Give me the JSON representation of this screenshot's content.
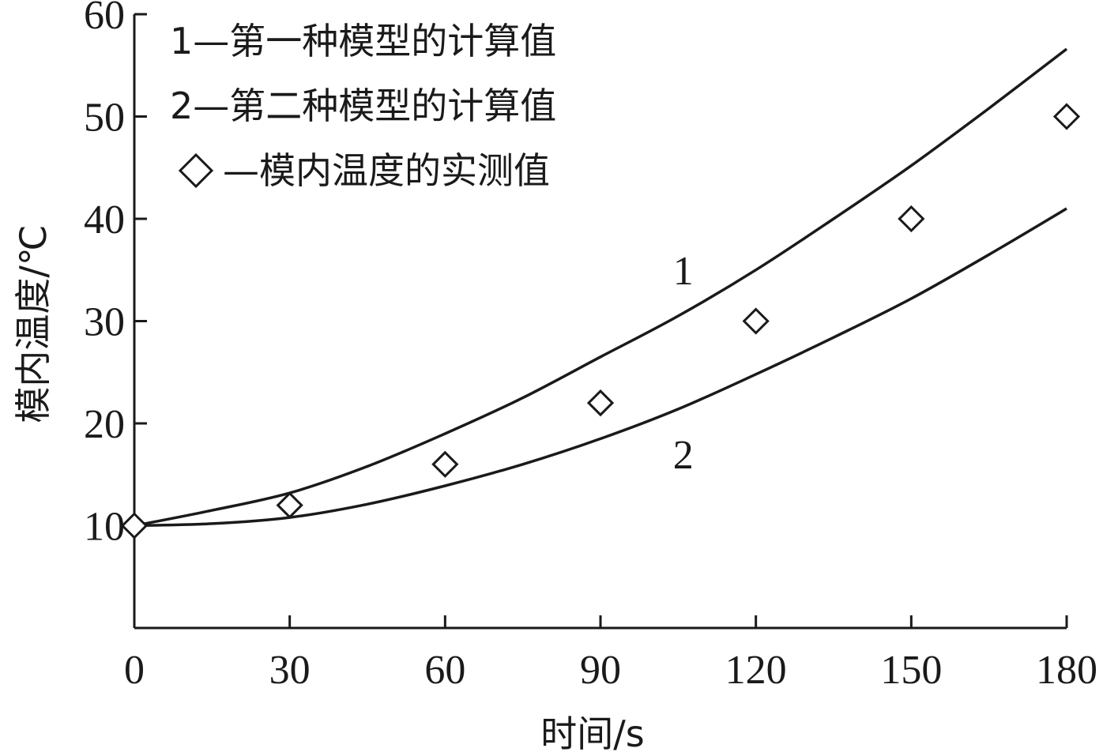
{
  "chart_data": {
    "type": "line",
    "xlabel": "时间/s",
    "ylabel": "模内温度/℃",
    "xlim": [
      0,
      180
    ],
    "ylim": [
      0,
      60
    ],
    "x_ticks": [
      0,
      30,
      60,
      90,
      120,
      150,
      180
    ],
    "y_ticks": [
      10,
      20,
      30,
      40,
      50,
      60
    ],
    "grid": false,
    "legend_position": "top-left",
    "series": [
      {
        "name": "1—第一种模型的计算值",
        "label": "1",
        "style": "line",
        "x": [
          0,
          15,
          30,
          45,
          60,
          75,
          90,
          105,
          120,
          135,
          150,
          165,
          180
        ],
        "y": [
          10,
          11.5,
          13.2,
          15.8,
          19.0,
          22.5,
          26.5,
          30.5,
          35.0,
          40.0,
          45.2,
          50.8,
          56.6
        ]
      },
      {
        "name": "2—第二种模型的计算值",
        "label": "2",
        "style": "line",
        "x": [
          0,
          15,
          30,
          45,
          60,
          75,
          90,
          105,
          120,
          135,
          150,
          165,
          180
        ],
        "y": [
          10,
          10.2,
          10.8,
          12.1,
          13.9,
          16.0,
          18.5,
          21.4,
          24.8,
          28.4,
          32.2,
          36.5,
          41.0
        ]
      },
      {
        "name": "◇—模内温度的实测值",
        "style": "marker",
        "marker": "diamond",
        "x": [
          0,
          30,
          60,
          90,
          120,
          150,
          180
        ],
        "y": [
          10,
          12,
          16,
          22,
          30,
          40,
          50
        ]
      }
    ],
    "curve_labels": [
      {
        "text": "1",
        "x": 104,
        "y": 35
      },
      {
        "text": "2",
        "x": 104,
        "y": 17
      }
    ]
  }
}
